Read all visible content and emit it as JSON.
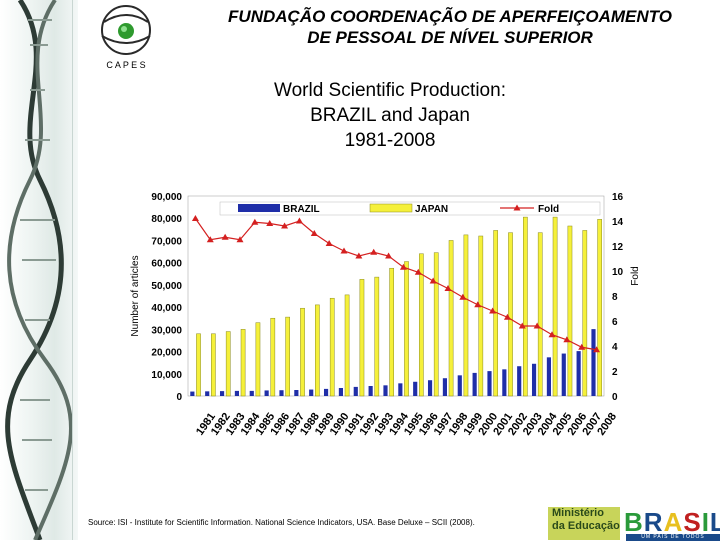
{
  "header": {
    "org_line1": "FUNDAÇÃO COORDENAÇÃO DE APERFEIÇOAMENTO",
    "org_line2": "DE PESSOAL DE NÍVEL SUPERIOR",
    "logo_text": "C A P E S"
  },
  "slide": {
    "title_line1": "World Scientific Production:",
    "title_line2": "BRAZIL and Japan",
    "title_line3": "1981-2008"
  },
  "chart_data": {
    "type": "bar",
    "title": "",
    "xlabel": "",
    "ylabel": "Number of articles",
    "y2label": "Fold",
    "ylim": [
      0,
      90000
    ],
    "y2lim": [
      0,
      16
    ],
    "ytick_labels": [
      "0",
      "10,000",
      "20,000",
      "30,000",
      "40,000",
      "50,000",
      "60,000",
      "70,000",
      "80,000",
      "90,000"
    ],
    "y2tick_labels": [
      "0",
      "2",
      "4",
      "6",
      "8",
      "10",
      "12",
      "14",
      "16"
    ],
    "categories": [
      "1981",
      "1982",
      "1983",
      "1984",
      "1985",
      "1986",
      "1987",
      "1988",
      "1989",
      "1990",
      "1991",
      "1992",
      "1993",
      "1994",
      "1995",
      "1996",
      "1997",
      "1998",
      "1999",
      "2000",
      "2001",
      "2002",
      "2003",
      "2004",
      "2005",
      "2006",
      "2007",
      "2008"
    ],
    "legend_position": "top",
    "series": [
      {
        "name": "BRAZIL",
        "kind": "bar",
        "axis": "left",
        "color": "#1f2ea8",
        "values": [
          2000,
          2100,
          2200,
          2300,
          2300,
          2500,
          2600,
          2700,
          2900,
          3200,
          3600,
          4100,
          4500,
          4800,
          5700,
          6400,
          7100,
          8000,
          9300,
          10400,
          11200,
          12000,
          13400,
          14500,
          17400,
          19100,
          20200,
          30100
        ]
      },
      {
        "name": "JAPAN",
        "kind": "bar",
        "axis": "left",
        "color": "#f5f03a",
        "values": [
          28000,
          28000,
          29000,
          30000,
          33000,
          35000,
          35500,
          39500,
          41000,
          44000,
          45500,
          52500,
          53500,
          57500,
          60500,
          64000,
          64500,
          70000,
          72500,
          72000,
          74500,
          73500,
          80500,
          73500,
          80500,
          76500,
          74500,
          79500
        ]
      },
      {
        "name": "Fold",
        "kind": "line",
        "axis": "right",
        "color": "#d42020",
        "values": [
          14.2,
          12.5,
          12.7,
          12.5,
          13.9,
          13.8,
          13.6,
          14.0,
          13.0,
          12.2,
          11.6,
          11.2,
          11.5,
          11.2,
          10.3,
          9.9,
          9.2,
          8.6,
          7.9,
          7.3,
          6.8,
          6.3,
          5.6,
          5.6,
          4.9,
          4.5,
          3.9,
          3.7
        ]
      }
    ]
  },
  "footer": {
    "source": "Source: ISI - Institute for Scientific Information. National Science Indicators, USA. Base Deluxe – SCII (2008).",
    "ministerio_line1": "Ministério",
    "ministerio_line2": "da Educação",
    "brasil": "BRASIL",
    "brasil_tagline": "UM PAÍS DE TODOS"
  },
  "colors": {
    "brasil_letters": [
      "#2a9a3a",
      "#1a4a8a",
      "#e8c020",
      "#c02020",
      "#2a9a3a",
      "#1a4a8a"
    ]
  }
}
